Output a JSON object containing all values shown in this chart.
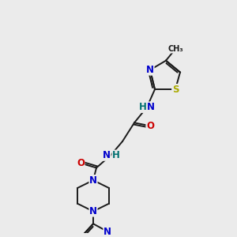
{
  "bg_color": "#ebebeb",
  "bond_color": "#1a1a1a",
  "bond_width": 1.4,
  "atom_colors": {
    "N": "#0000cc",
    "O": "#cc0000",
    "S": "#aaaa00",
    "C": "#1a1a1a",
    "H": "#007070"
  },
  "fs": 8.5,
  "fss": 7.0
}
